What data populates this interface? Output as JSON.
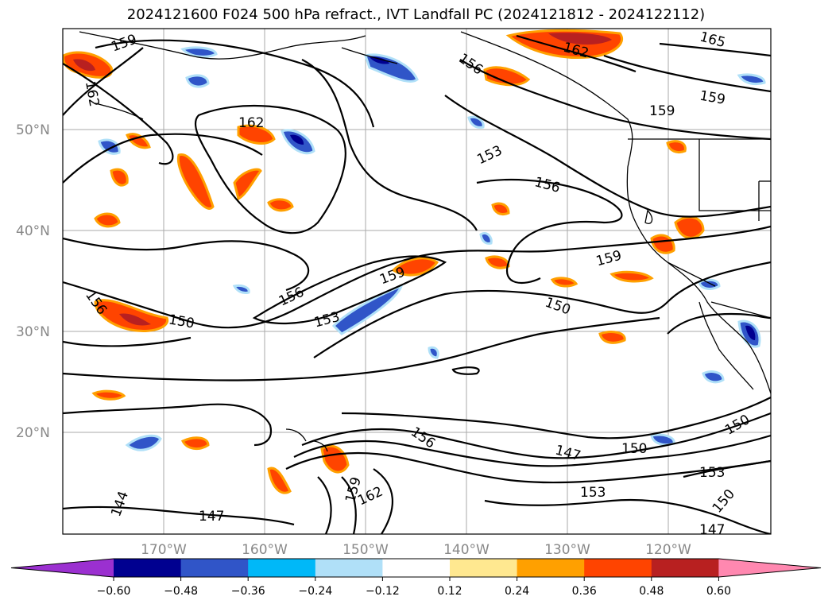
{
  "title": "2024121600 F024 500 hPa refract., IVT Landfall PC (2024121812 - 2024122112)",
  "map": {
    "lat_labels": [
      "50°N",
      "40°N",
      "30°N",
      "20°N"
    ],
    "lon_labels": [
      "170°W",
      "160°W",
      "150°W",
      "140°W",
      "130°W",
      "120°W"
    ],
    "contour_labels": [
      {
        "text": "159"
      },
      {
        "text": "165"
      },
      {
        "text": "162"
      },
      {
        "text": "156"
      },
      {
        "text": "159"
      },
      {
        "text": "159"
      },
      {
        "text": "162"
      },
      {
        "text": "162"
      },
      {
        "text": "153"
      },
      {
        "text": "156"
      },
      {
        "text": "159"
      },
      {
        "text": "156"
      },
      {
        "text": "159"
      },
      {
        "text": "153"
      },
      {
        "text": "156"
      },
      {
        "text": "150"
      },
      {
        "text": "150"
      },
      {
        "text": "150"
      },
      {
        "text": "156"
      },
      {
        "text": "147"
      },
      {
        "text": "150"
      },
      {
        "text": "153"
      },
      {
        "text": "150"
      },
      {
        "text": "153"
      },
      {
        "text": "159"
      },
      {
        "text": "162"
      },
      {
        "text": "144"
      },
      {
        "text": "147"
      },
      {
        "text": "147"
      }
    ]
  },
  "colorbar": {
    "ticks": [
      "−0.60",
      "−0.48",
      "−0.36",
      "−0.24",
      "−0.12",
      "0.12",
      "0.24",
      "0.36",
      "0.48",
      "0.60"
    ],
    "colors": [
      "#9b30d0",
      "#000090",
      "#3055c8",
      "#00b8f8",
      "#b0e0f8",
      "#ffffff",
      "#ffe890",
      "#ffa000",
      "#ff4400",
      "#b82020",
      "#ff88b0"
    ]
  }
}
